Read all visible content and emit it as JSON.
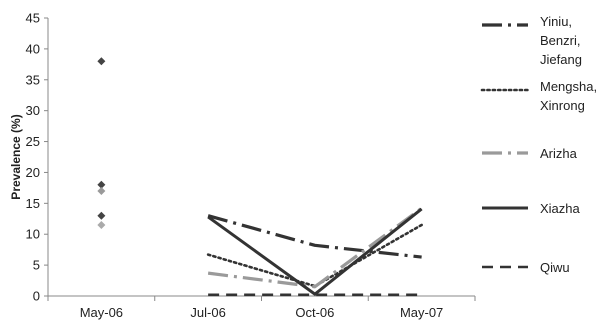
{
  "chart_data": {
    "type": "line",
    "title": "",
    "xlabel": "",
    "ylabel": "Prevalence (%)",
    "ylim": [
      0,
      45
    ],
    "yticks": [
      0,
      5,
      10,
      15,
      20,
      25,
      30,
      35,
      40,
      45
    ],
    "categories": [
      "May-06",
      "Jul-06",
      "Oct-06",
      "May-07"
    ],
    "grid": false,
    "legend_position": "right",
    "series": [
      {
        "name": "Yiniu, Benzri, Jiefang",
        "name_lines": [
          "Yiniu,",
          "Benzri,",
          "Jiefang"
        ],
        "style": "dashdot",
        "color": "#333333",
        "width": 3.2,
        "values": [
          18,
          13,
          8.2,
          6.3
        ]
      },
      {
        "name": "Mengsha, Xinrong",
        "name_lines": [
          "Mengsha,",
          "Xinrong"
        ],
        "style": "dotted",
        "color": "#333333",
        "width": 2.6,
        "values": [
          38,
          6.7,
          1.6,
          11.5
        ]
      },
      {
        "name": "Arizha",
        "name_lines": [
          "Arizha"
        ],
        "style": "dashdot-light",
        "color": "#9a9a9a",
        "width": 3.2,
        "values": [
          17,
          3.7,
          1.5,
          14.2
        ]
      },
      {
        "name": "Xiazha",
        "name_lines": [
          "Xiazha"
        ],
        "style": "solid",
        "color": "#333333",
        "width": 3,
        "values": [
          13,
          12.8,
          0.3,
          14.1
        ]
      },
      {
        "name": "Qiwu",
        "name_lines": [
          "Qiwu"
        ],
        "style": "dashed",
        "color": "#333333",
        "width": 2.6,
        "values": [
          11.5,
          0.2,
          0.2,
          0.2
        ]
      }
    ]
  }
}
